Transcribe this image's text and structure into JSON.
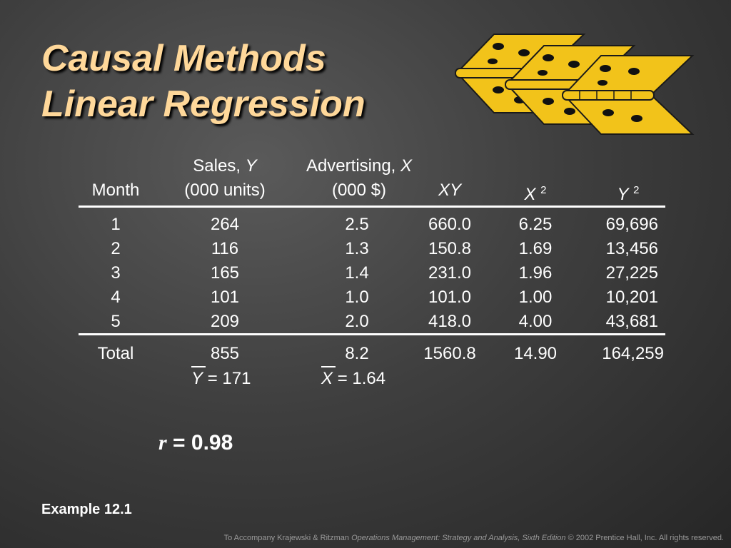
{
  "title": {
    "line1": "Causal Methods",
    "line2": "Linear Regression"
  },
  "colors": {
    "title": "#ffd89a",
    "background": "#3f3f3f",
    "hinge": "#f2c31a"
  },
  "table": {
    "headers": {
      "month": "Month",
      "sales_line1": "Sales,",
      "sales_var": "Y",
      "sales_line2": "(000 units)",
      "adv_line1": "Advertising,",
      "adv_var": "X",
      "adv_line2": "(000 $)",
      "xy": "XY",
      "x2_var": "X",
      "x2_exp": "2",
      "y2_var": "Y",
      "y2_exp": "2"
    },
    "columns": {
      "month": [
        "1",
        "2",
        "3",
        "4",
        "5"
      ],
      "sales": [
        "264",
        "116",
        "165",
        "101",
        "209"
      ],
      "advertising": [
        "2.5",
        "1.3",
        "1.4",
        "1.0",
        "2.0"
      ],
      "xy": [
        "660.0",
        "150.8",
        "231.0",
        "101.0",
        "418.0"
      ],
      "x2": [
        "6.25",
        "1.69",
        "1.96",
        "1.00",
        "4.00"
      ],
      "y2": [
        "69,696",
        "13,456",
        "27,225",
        "10,201",
        "43,681"
      ]
    },
    "totals": {
      "label": "Total",
      "sales": "855",
      "advertising": "8.2",
      "xy": "1560.8",
      "x2": "14.90",
      "y2": "164,259"
    },
    "means": {
      "y_var": "Y",
      "y_value": "= 171",
      "x_var": "X",
      "x_value": "= 1.64"
    }
  },
  "correlation": {
    "var": "r",
    "value": "= 0.98"
  },
  "example_label": "Example 12.1",
  "footer": {
    "prefix": "To Accompany Krajewski & Ritzman",
    "book": "Operations Management: Strategy and Analysis, Sixth Edition",
    "suffix": "© 2002 Prentice Hall, Inc. All rights reserved."
  }
}
